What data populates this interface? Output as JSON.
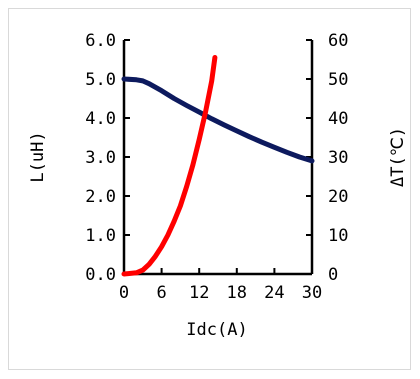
{
  "chart_data": {
    "type": "line",
    "title": "",
    "xlabel": "Idc(A)",
    "ylabel_left": "L(uH)",
    "ylabel_right": "ΔT(℃)",
    "xlim": [
      0,
      30
    ],
    "ylim_left": [
      0,
      6
    ],
    "ylim_right": [
      0,
      60
    ],
    "x_ticks": [
      "0",
      "6",
      "12",
      "18",
      "24",
      "30"
    ],
    "y_left_ticks": [
      "0.0",
      "1.0",
      "2.0",
      "3.0",
      "4.0",
      "5.0",
      "6.0"
    ],
    "y_right_ticks": [
      "0",
      "10",
      "20",
      "30",
      "40",
      "50",
      "60"
    ],
    "grid": false,
    "legend": "none",
    "series": [
      {
        "axis": "left",
        "color": "#0d1a5e",
        "x": [
          0,
          2,
          3,
          4,
          6,
          8,
          10,
          12,
          14,
          16,
          18,
          20,
          22,
          24,
          26,
          28,
          30
        ],
        "y": [
          5.0,
          4.98,
          4.95,
          4.88,
          4.7,
          4.5,
          4.32,
          4.15,
          3.98,
          3.82,
          3.67,
          3.52,
          3.38,
          3.25,
          3.12,
          3.0,
          2.9
        ]
      },
      {
        "axis": "right",
        "color": "#ff0000",
        "x": [
          0,
          2,
          3,
          4,
          5,
          6,
          7,
          8,
          9,
          10,
          11,
          12,
          13,
          14,
          14.5
        ],
        "y": [
          0,
          0.3,
          1.0,
          2.5,
          4.5,
          7.0,
          10.0,
          13.5,
          17.5,
          22.5,
          28.0,
          34.5,
          41.5,
          49.5,
          55.5
        ]
      }
    ]
  }
}
